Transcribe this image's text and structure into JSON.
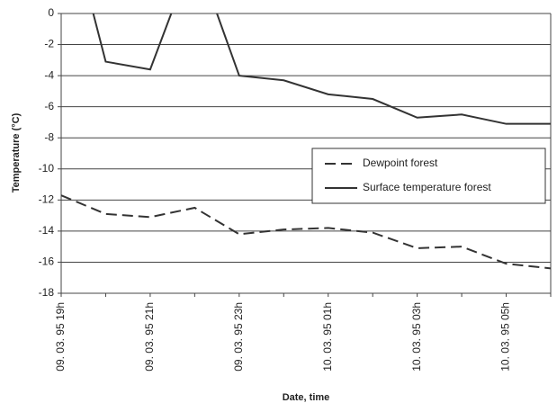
{
  "chart_data": {
    "type": "line",
    "xlabel": "Date, time",
    "ylabel": "Temperature (°C)",
    "categories": [
      "09. 03. 95 19h",
      null,
      "09. 03. 95 21h",
      null,
      "09. 03. 95 23h",
      null,
      "10. 03. 95 01h",
      null,
      "10. 03. 95 03h",
      null,
      "10. 03. 95 05h",
      null
    ],
    "series": [
      {
        "name": "Dewpoint forest",
        "color": "#333333",
        "dash": true,
        "values": [
          -11.7,
          -12.9,
          -13.1,
          -12.5,
          -14.2,
          -13.9,
          -13.8,
          -14.1,
          -15.1,
          -15.0,
          -16.1,
          -16.4
        ]
      },
      {
        "name": "Surface temperature forest",
        "color": "#333333",
        "dash": false,
        "values": [
          8,
          -3.1,
          -3.6,
          4,
          -4.0,
          -4.3,
          -5.2,
          -5.5,
          -6.7,
          -6.5,
          -7.1,
          -7.1
        ]
      }
    ],
    "ylim": [
      -18,
      0
    ],
    "yticks": [
      -18,
      -16,
      -14,
      -12,
      -10,
      -8,
      -6,
      -4,
      -2,
      0
    ],
    "grid": true,
    "legend": "right"
  }
}
